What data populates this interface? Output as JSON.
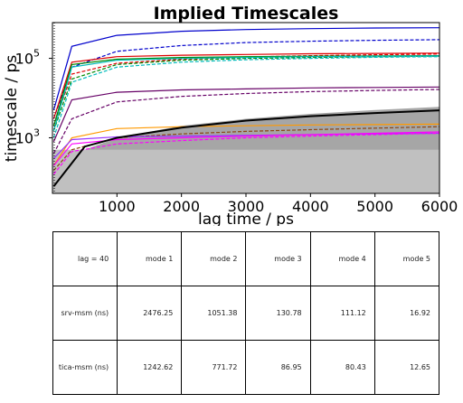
{
  "chart_data": {
    "type": "line",
    "title": "Implied Timescales",
    "xlabel": "lag time / ps",
    "ylabel": "timescale / ps",
    "xlim": [
      0,
      6000
    ],
    "ylim_log10": [
      1.6,
      5.9
    ],
    "yscale": "log",
    "x_ticks": [
      1000,
      2000,
      3000,
      4000,
      5000,
      6000
    ],
    "x_tick_labels": [
      "1000",
      "2000",
      "3000",
      "4000",
      "5000",
      "6000"
    ],
    "y_ticks_log10": [
      3,
      5
    ],
    "grid": false,
    "legend": "none",
    "series": [
      {
        "color": "#0000cc",
        "style": "solid",
        "points": [
          [
            20,
            5000
          ],
          [
            300,
            200000
          ],
          [
            1000,
            380000
          ],
          [
            2000,
            480000
          ],
          [
            3000,
            530000
          ],
          [
            4000,
            560000
          ],
          [
            5000,
            580000
          ],
          [
            6000,
            590000
          ]
        ]
      },
      {
        "color": "#0000cc",
        "style": "dashed",
        "points": [
          [
            20,
            3000
          ],
          [
            300,
            60000
          ],
          [
            1000,
            150000
          ],
          [
            2000,
            210000
          ],
          [
            3000,
            250000
          ],
          [
            4000,
            270000
          ],
          [
            5000,
            285000
          ],
          [
            6000,
            295000
          ]
        ]
      },
      {
        "color": "#dd0000",
        "style": "solid",
        "points": [
          [
            20,
            3000
          ],
          [
            300,
            80000
          ],
          [
            1000,
            110000
          ],
          [
            2000,
            120000
          ],
          [
            3000,
            125000
          ],
          [
            4000,
            130000
          ],
          [
            5000,
            133000
          ],
          [
            6000,
            135000
          ]
        ]
      },
      {
        "color": "#dd0000",
        "style": "dashed",
        "points": [
          [
            20,
            2000
          ],
          [
            300,
            40000
          ],
          [
            1000,
            75000
          ],
          [
            2000,
            95000
          ],
          [
            3000,
            108000
          ],
          [
            4000,
            117000
          ],
          [
            5000,
            123000
          ],
          [
            6000,
            128000
          ]
        ]
      },
      {
        "color": "#008800",
        "style": "solid",
        "points": [
          [
            20,
            2000
          ],
          [
            300,
            70000
          ],
          [
            1000,
            95000
          ],
          [
            2000,
            105000
          ],
          [
            3000,
            110000
          ],
          [
            4000,
            113000
          ],
          [
            5000,
            115000
          ],
          [
            6000,
            117000
          ]
        ]
      },
      {
        "color": "#008800",
        "style": "dashed",
        "points": [
          [
            20,
            1500
          ],
          [
            300,
            30000
          ],
          [
            1000,
            70000
          ],
          [
            2000,
            90000
          ],
          [
            3000,
            100000
          ],
          [
            4000,
            105000
          ],
          [
            5000,
            110000
          ],
          [
            6000,
            113000
          ]
        ]
      },
      {
        "color": "#00bbbb",
        "style": "solid",
        "points": [
          [
            20,
            1500
          ],
          [
            300,
            60000
          ],
          [
            1000,
            90000
          ],
          [
            2000,
            100000
          ],
          [
            3000,
            105000
          ],
          [
            4000,
            110000
          ],
          [
            5000,
            113000
          ],
          [
            6000,
            115000
          ]
        ]
      },
      {
        "color": "#00bbbb",
        "style": "dashed",
        "points": [
          [
            20,
            1000
          ],
          [
            300,
            25000
          ],
          [
            1000,
            60000
          ],
          [
            2000,
            80000
          ],
          [
            3000,
            92000
          ],
          [
            4000,
            100000
          ],
          [
            5000,
            106000
          ],
          [
            6000,
            110000
          ]
        ]
      },
      {
        "color": "#660066",
        "style": "solid",
        "points": [
          [
            20,
            800
          ],
          [
            300,
            9000
          ],
          [
            1000,
            14000
          ],
          [
            2000,
            16000
          ],
          [
            3000,
            17000
          ],
          [
            4000,
            18000
          ],
          [
            5000,
            18500
          ],
          [
            6000,
            19000
          ]
        ]
      },
      {
        "color": "#660066",
        "style": "dashed",
        "points": [
          [
            20,
            400
          ],
          [
            300,
            3000
          ],
          [
            1000,
            8000
          ],
          [
            2000,
            11000
          ],
          [
            3000,
            13000
          ],
          [
            4000,
            14500
          ],
          [
            5000,
            15500
          ],
          [
            6000,
            16500
          ]
        ]
      },
      {
        "color": "#ff9900",
        "style": "solid",
        "points": [
          [
            20,
            200
          ],
          [
            300,
            1000
          ],
          [
            1000,
            1700
          ],
          [
            2000,
            1900
          ],
          [
            3000,
            2000
          ],
          [
            4000,
            2100
          ],
          [
            5000,
            2150
          ],
          [
            6000,
            2200
          ]
        ]
      },
      {
        "color": "#8b4513",
        "style": "dashed",
        "points": [
          [
            20,
            150
          ],
          [
            300,
            500
          ],
          [
            1000,
            1000
          ],
          [
            2000,
            1250
          ],
          [
            3000,
            1450
          ],
          [
            4000,
            1600
          ],
          [
            5000,
            1750
          ],
          [
            6000,
            1900
          ]
        ]
      },
      {
        "color": "#9933ff",
        "style": "solid",
        "points": [
          [
            20,
            300
          ],
          [
            300,
            900
          ],
          [
            1000,
            1050
          ],
          [
            2000,
            1100
          ],
          [
            3000,
            1150
          ],
          [
            4000,
            1200
          ],
          [
            5000,
            1250
          ],
          [
            6000,
            1300
          ]
        ]
      },
      {
        "color": "#ff00ff",
        "style": "solid",
        "points": [
          [
            20,
            200
          ],
          [
            300,
            700
          ],
          [
            1000,
            900
          ],
          [
            2000,
            1000
          ],
          [
            3000,
            1100
          ],
          [
            4000,
            1200
          ],
          [
            5000,
            1300
          ],
          [
            6000,
            1400
          ]
        ]
      },
      {
        "color": "#ff00ff",
        "style": "dashed",
        "points": [
          [
            20,
            120
          ],
          [
            300,
            450
          ],
          [
            1000,
            700
          ],
          [
            2000,
            850
          ],
          [
            3000,
            1000
          ],
          [
            4000,
            1100
          ],
          [
            5000,
            1200
          ],
          [
            6000,
            1300
          ]
        ]
      },
      {
        "color": "#000000",
        "style": "solid",
        "points": [
          [
            20,
            60
          ],
          [
            500,
            600
          ],
          [
            1000,
            1000
          ],
          [
            2000,
            1800
          ],
          [
            3000,
            2700
          ],
          [
            4000,
            3500
          ],
          [
            5000,
            4200
          ],
          [
            6000,
            4900
          ]
        ]
      }
    ]
  },
  "table": {
    "header": [
      "lag = 40",
      "mode 1",
      "mode 2",
      "mode 3",
      "mode 4",
      "mode 5"
    ],
    "rows": [
      [
        "srv-msm (ns)",
        "2476.25",
        "1051.38",
        "130.78",
        "111.12",
        "16.92"
      ],
      [
        "tica-msm (ns)",
        "1242.62",
        "771.72",
        "86.95",
        "80.43",
        "12.65"
      ]
    ]
  }
}
